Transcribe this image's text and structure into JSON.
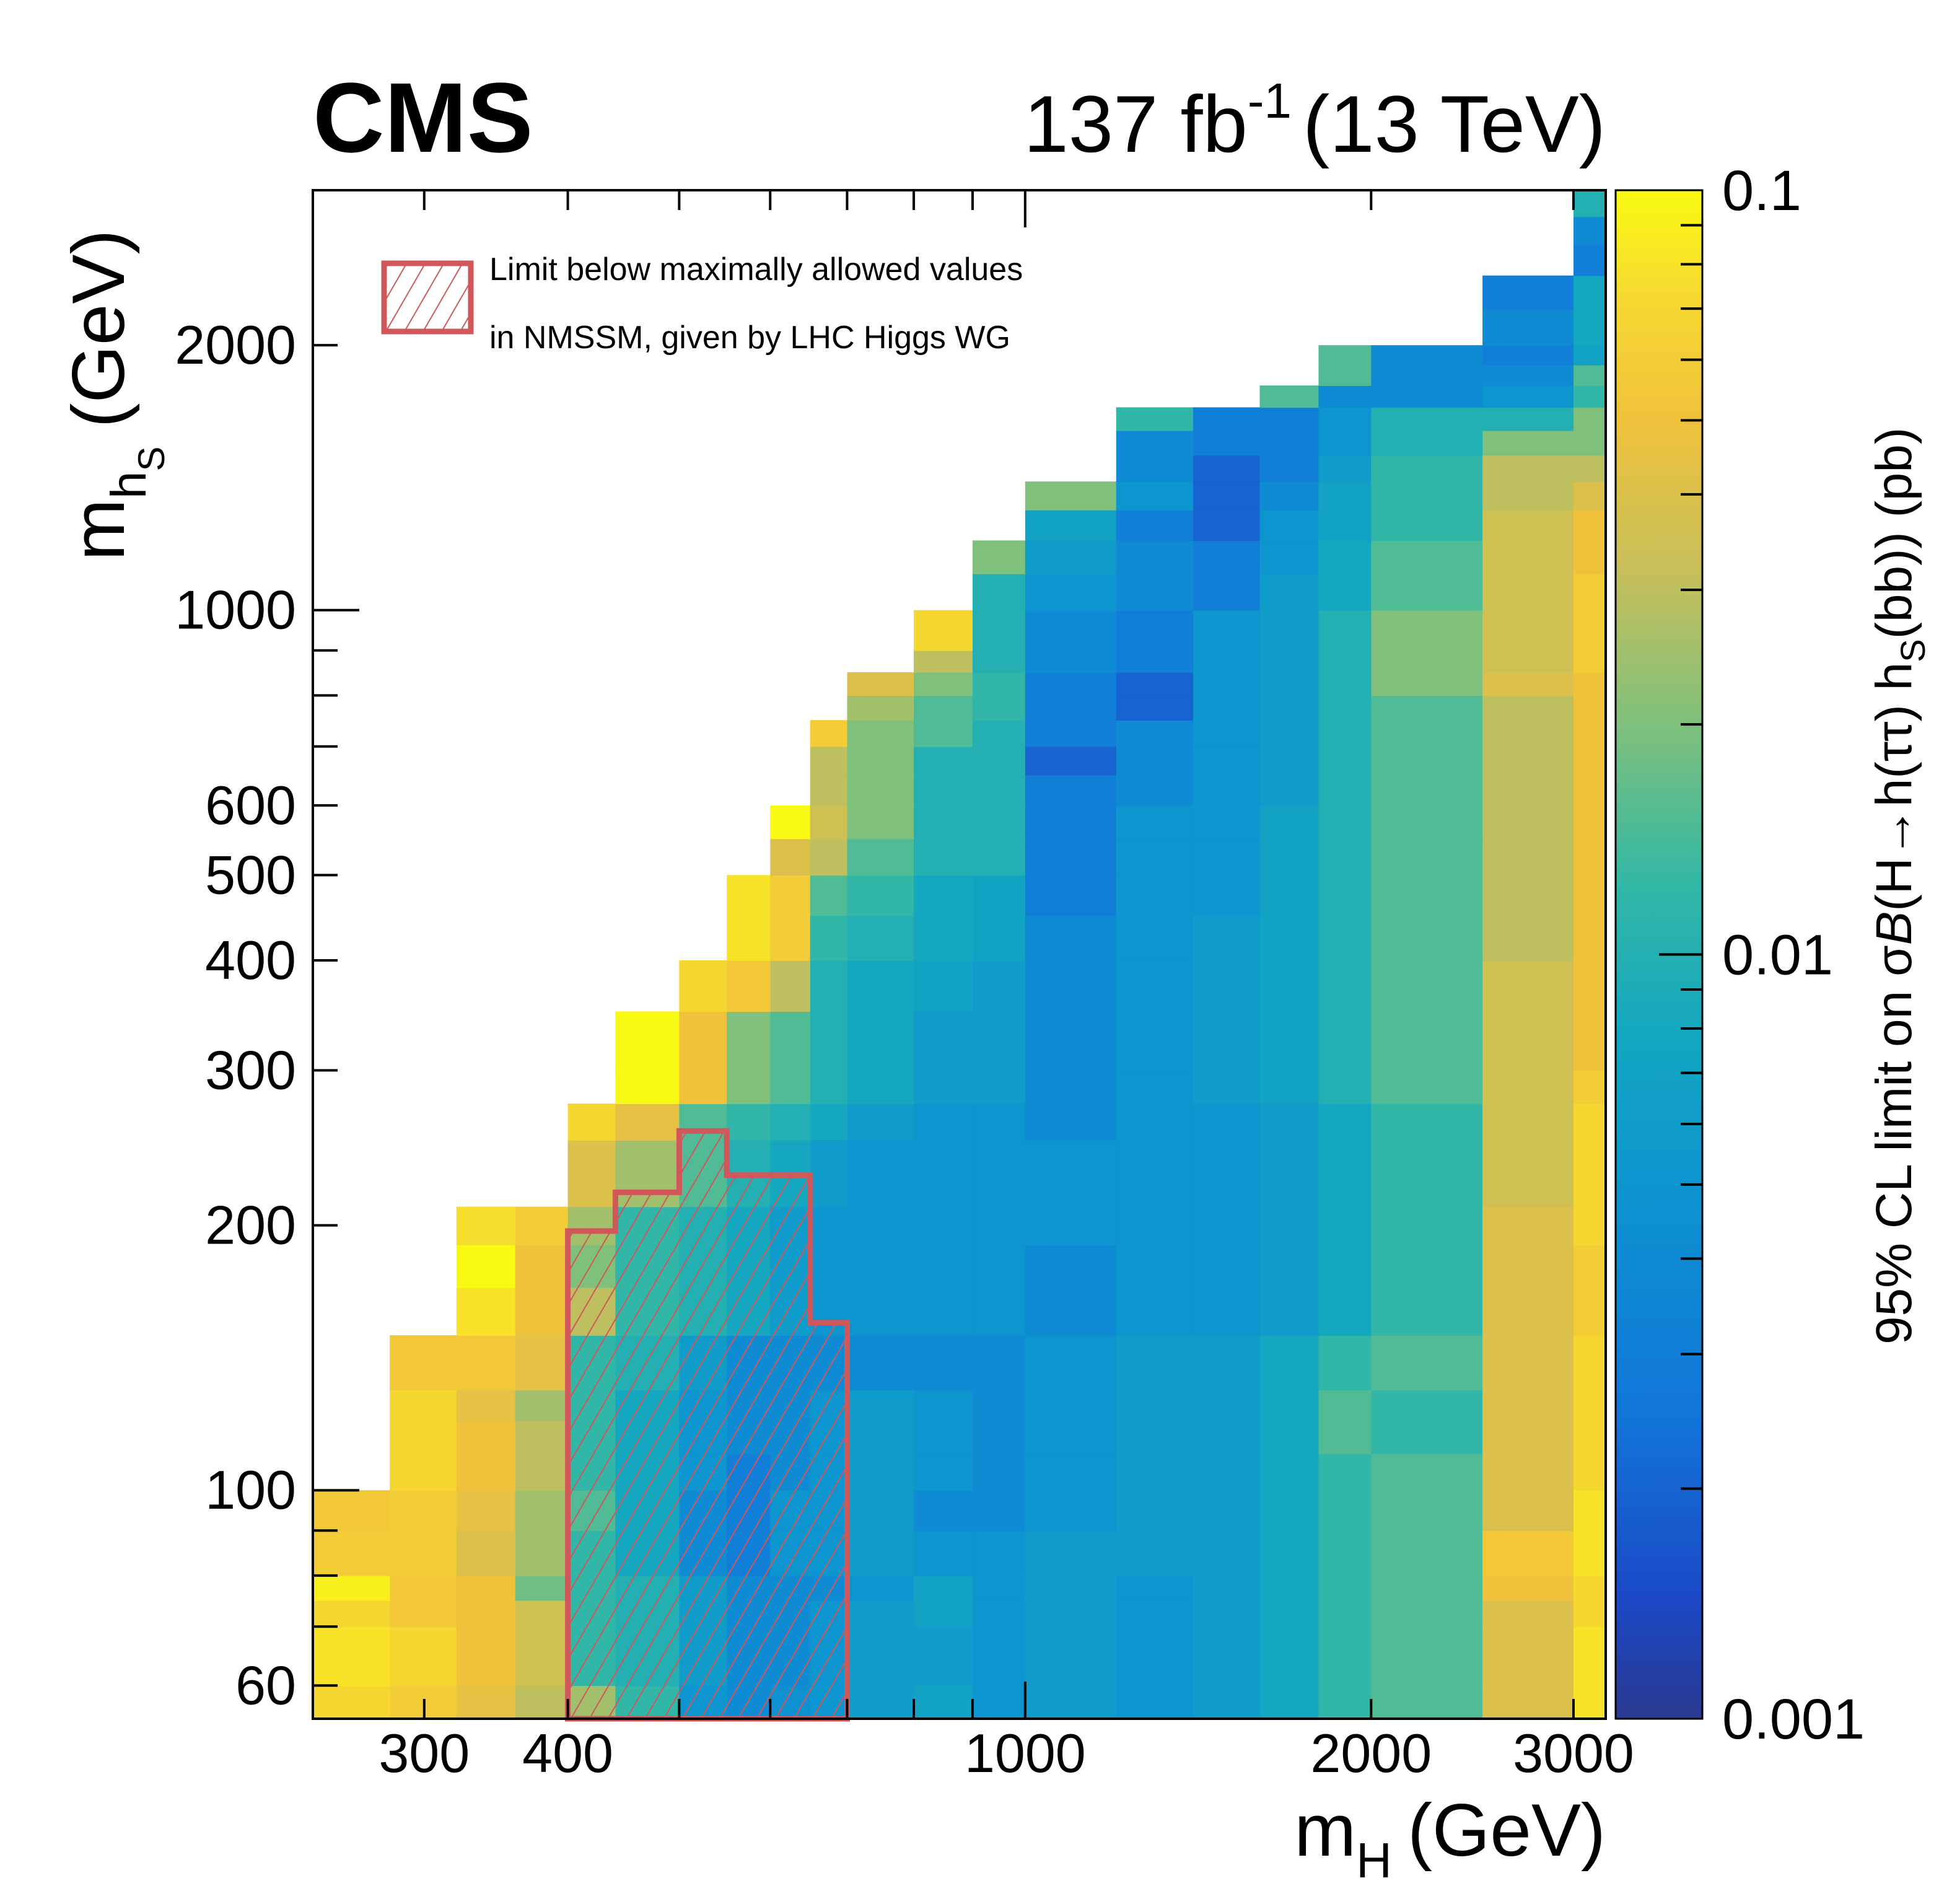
{
  "header": {
    "experiment": "CMS",
    "lumi_value": "137 fb",
    "lumi_exp": "-1",
    "energy": "(13 TeV)"
  },
  "legend": {
    "line1": "Limit below maximally allowed values",
    "line2": "in NMSSM, given by LHC Higgs WG"
  },
  "axes": {
    "x_main": "m",
    "x_sub": "H",
    "x_unit": "(GeV)",
    "y_main": "m",
    "y_sub": "h",
    "y_subsub": "S",
    "y_unit": "(GeV)",
    "z_label": "95% CL limit on σ",
    "z_italic": "B",
    "z_mid": "(H→h(ττ) h",
    "z_sub": "S",
    "z_end": "(bb))  (pb)"
  },
  "chart_data": {
    "type": "heatmap",
    "x_axis": {
      "label": "m_H (GeV)",
      "scale": "log",
      "range": [
        240,
        3200
      ],
      "tick_labels": [
        "300",
        "400",
        "1000",
        "2000",
        "3000"
      ]
    },
    "y_axis": {
      "label": "m_hS (GeV)",
      "scale": "log",
      "range": [
        55,
        3000
      ],
      "tick_labels": [
        "60",
        "100",
        "200",
        "300",
        "400",
        "500",
        "600",
        "1000",
        "2000"
      ]
    },
    "z_axis": {
      "label": "95% CL limit on σB(H→h(ττ) h_S(bb)) (pb)",
      "scale": "log",
      "range": [
        0.001,
        0.1
      ],
      "tick_labels": [
        "0.001",
        "0.01",
        "0.1"
      ],
      "palette": "parula-like (dark blue → teal → green → yellow)"
    },
    "x_bin_edges": [
      240,
      280,
      320,
      360,
      400,
      440,
      500,
      550,
      600,
      650,
      700,
      800,
      900,
      1000,
      1200,
      1400,
      1600,
      1800,
      2000,
      2500,
      3000,
      3200
    ],
    "y_bin_edges": [
      55,
      60,
      70,
      75,
      80,
      90,
      100,
      110,
      120,
      130,
      150,
      170,
      190,
      210,
      250,
      275,
      300,
      350,
      400,
      450,
      500,
      550,
      600,
      650,
      700,
      750,
      800,
      850,
      900,
      1000,
      1100,
      1200,
      1300,
      1400,
      1500,
      1600,
      1700,
      1800,
      1900,
      2000,
      2200,
      2400,
      2600,
      2800,
      3000
    ],
    "cells": [
      [
        0.07,
        0.06,
        0.045,
        0.03,
        0.025,
        0.012,
        0.005,
        0.004,
        0.0045,
        0.005,
        0.006,
        0.007,
        0.005,
        0.006,
        0.005,
        0.006,
        0.008,
        0.012,
        0.015,
        0.04,
        0.08
      ],
      [
        0.08,
        0.07,
        0.05,
        0.035,
        0.012,
        0.01,
        0.006,
        0.004,
        0.004,
        0.005,
        0.006,
        0.006,
        0.005,
        0.006,
        0.005,
        0.006,
        0.008,
        0.012,
        0.015,
        0.04,
        0.08
      ],
      [
        0.07,
        0.055,
        0.05,
        0.035,
        0.012,
        0.01,
        0.006,
        0.004,
        0.004,
        0.005,
        0.006,
        0.007,
        0.005,
        0.006,
        0.005,
        0.006,
        0.008,
        0.012,
        0.015,
        0.04,
        0.07
      ],
      [
        0.09,
        0.055,
        0.05,
        0.018,
        0.012,
        0.01,
        0.006,
        0.004,
        0.004,
        0.004,
        0.005,
        0.007,
        0.005,
        0.006,
        0.005,
        0.006,
        0.008,
        0.012,
        0.015,
        0.05,
        0.07
      ],
      [
        0.06,
        0.06,
        0.04,
        0.025,
        0.012,
        0.008,
        0.004,
        0.003,
        0.005,
        0.005,
        0.006,
        0.005,
        0.005,
        0.006,
        0.006,
        0.006,
        0.008,
        0.012,
        0.015,
        0.055,
        0.08
      ],
      [
        0.055,
        0.06,
        0.045,
        0.025,
        0.015,
        0.008,
        0.004,
        0.003,
        0.005,
        0.005,
        0.006,
        0.004,
        0.004,
        0.005,
        0.006,
        0.006,
        0.008,
        0.012,
        0.015,
        0.04,
        0.08
      ],
      [
        null,
        0.07,
        0.05,
        0.03,
        0.012,
        0.008,
        0.005,
        0.003,
        0.004,
        0.005,
        0.006,
        0.005,
        0.004,
        0.005,
        0.006,
        0.006,
        0.008,
        0.012,
        0.015,
        0.04,
        0.07
      ],
      [
        null,
        0.07,
        0.05,
        0.03,
        0.012,
        0.008,
        0.005,
        0.004,
        0.004,
        0.005,
        0.006,
        0.005,
        0.004,
        0.005,
        0.006,
        0.006,
        0.008,
        0.015,
        0.012,
        0.04,
        0.07
      ],
      [
        null,
        0.07,
        0.045,
        0.025,
        0.012,
        0.008,
        0.005,
        0.004,
        0.004,
        0.005,
        0.006,
        0.005,
        0.004,
        0.005,
        0.006,
        0.006,
        0.008,
        0.015,
        0.012,
        0.04,
        0.07
      ],
      [
        null,
        0.055,
        0.055,
        0.045,
        0.012,
        0.01,
        0.006,
        0.004,
        0.004,
        0.004,
        0.004,
        0.004,
        0.004,
        0.005,
        0.006,
        0.006,
        0.008,
        0.012,
        0.015,
        0.04,
        0.07
      ],
      [
        null,
        null,
        0.08,
        0.05,
        0.03,
        0.012,
        0.01,
        0.008,
        0.006,
        0.005,
        0.005,
        0.005,
        0.005,
        0.004,
        0.005,
        0.005,
        0.006,
        0.008,
        0.012,
        0.04,
        0.06
      ],
      [
        null,
        null,
        0.1,
        0.05,
        0.02,
        0.012,
        0.01,
        0.008,
        0.006,
        0.005,
        0.005,
        0.005,
        0.005,
        0.004,
        0.005,
        0.005,
        0.006,
        0.008,
        0.012,
        0.04,
        0.06
      ],
      [
        null,
        null,
        0.075,
        0.06,
        0.025,
        0.012,
        0.01,
        0.008,
        0.006,
        0.005,
        0.005,
        0.005,
        0.005,
        0.005,
        0.005,
        0.005,
        0.006,
        0.008,
        0.012,
        0.04,
        0.07
      ],
      [
        null,
        null,
        null,
        null,
        0.04,
        0.025,
        0.015,
        0.01,
        0.008,
        0.006,
        0.005,
        0.005,
        0.005,
        0.005,
        0.005,
        0.005,
        0.006,
        0.008,
        0.012,
        0.035,
        0.07
      ],
      [
        null,
        null,
        null,
        null,
        0.07,
        0.045,
        0.015,
        0.012,
        0.01,
        0.008,
        0.006,
        0.005,
        0.005,
        0.004,
        0.005,
        0.005,
        0.006,
        0.008,
        0.012,
        0.035,
        0.07
      ],
      [
        null,
        null,
        null,
        null,
        null,
        0.1,
        0.05,
        0.02,
        0.015,
        0.01,
        0.008,
        0.006,
        0.006,
        0.004,
        0.005,
        0.006,
        0.007,
        0.01,
        0.015,
        0.035,
        0.06
      ],
      [
        null,
        null,
        null,
        null,
        null,
        0.1,
        0.05,
        0.02,
        0.015,
        0.01,
        0.008,
        0.006,
        0.006,
        0.004,
        0.005,
        0.006,
        0.007,
        0.01,
        0.015,
        0.035,
        0.05
      ],
      [
        null,
        null,
        null,
        null,
        null,
        null,
        0.07,
        0.055,
        0.03,
        0.01,
        0.008,
        0.007,
        0.006,
        0.004,
        0.005,
        0.006,
        0.007,
        0.01,
        0.015,
        0.035,
        0.05
      ],
      [
        null,
        null,
        null,
        null,
        null,
        null,
        null,
        0.08,
        0.06,
        0.012,
        0.01,
        0.008,
        0.007,
        0.004,
        0.005,
        0.006,
        0.007,
        0.01,
        0.015,
        0.03,
        0.05
      ],
      [
        null,
        null,
        null,
        null,
        null,
        null,
        null,
        0.08,
        0.06,
        0.015,
        0.012,
        0.008,
        0.007,
        0.003,
        0.005,
        0.005,
        0.007,
        0.01,
        0.015,
        0.03,
        0.05
      ],
      [
        null,
        null,
        null,
        null,
        null,
        null,
        null,
        null,
        0.04,
        0.03,
        0.015,
        0.01,
        0.01,
        0.003,
        0.005,
        0.005,
        0.007,
        0.01,
        0.015,
        0.03,
        0.05
      ],
      [
        null,
        null,
        null,
        null,
        null,
        null,
        null,
        null,
        0.1,
        0.035,
        0.02,
        0.01,
        0.01,
        0.003,
        0.005,
        0.005,
        0.007,
        0.01,
        0.015,
        0.03,
        0.05
      ],
      [
        null,
        null,
        null,
        null,
        null,
        null,
        null,
        null,
        null,
        0.03,
        0.02,
        0.01,
        0.01,
        0.003,
        0.004,
        0.005,
        0.006,
        0.01,
        0.015,
        0.03,
        0.05
      ],
      [
        null,
        null,
        null,
        null,
        null,
        null,
        null,
        null,
        null,
        0.03,
        0.02,
        0.01,
        0.01,
        0.002,
        0.004,
        0.005,
        0.006,
        0.01,
        0.015,
        0.03,
        0.05
      ],
      [
        null,
        null,
        null,
        null,
        null,
        null,
        null,
        null,
        null,
        0.06,
        0.02,
        0.015,
        0.01,
        0.003,
        0.004,
        0.005,
        0.006,
        0.01,
        0.015,
        0.03,
        0.05
      ],
      [
        null,
        null,
        null,
        null,
        null,
        null,
        null,
        null,
        null,
        null,
        0.025,
        0.015,
        0.012,
        0.003,
        0.002,
        0.005,
        0.006,
        0.01,
        0.015,
        0.03,
        0.05
      ],
      [
        null,
        null,
        null,
        null,
        null,
        null,
        null,
        null,
        null,
        null,
        0.04,
        0.02,
        0.012,
        0.003,
        0.002,
        0.005,
        0.006,
        0.01,
        0.02,
        0.04,
        0.05
      ],
      [
        null,
        null,
        null,
        null,
        null,
        null,
        null,
        null,
        null,
        null,
        null,
        0.03,
        0.01,
        0.004,
        0.003,
        0.005,
        0.006,
        0.01,
        0.02,
        0.035,
        0.06
      ],
      [
        null,
        null,
        null,
        null,
        null,
        null,
        null,
        null,
        null,
        null,
        null,
        0.07,
        0.01,
        0.004,
        0.003,
        0.005,
        0.006,
        0.01,
        0.02,
        0.035,
        0.06
      ],
      [
        null,
        null,
        null,
        null,
        null,
        null,
        null,
        null,
        null,
        null,
        null,
        null,
        0.01,
        0.005,
        0.004,
        0.003,
        0.006,
        0.008,
        0.015,
        0.035,
        0.06
      ],
      [
        null,
        null,
        null,
        null,
        null,
        null,
        null,
        null,
        null,
        null,
        null,
        null,
        0.02,
        0.006,
        0.004,
        0.003,
        0.005,
        0.008,
        0.015,
        0.035,
        0.05
      ],
      [
        null,
        null,
        null,
        null,
        null,
        null,
        null,
        null,
        null,
        null,
        null,
        null,
        null,
        0.007,
        0.003,
        0.002,
        0.005,
        0.007,
        0.012,
        0.035,
        0.05
      ],
      [
        null,
        null,
        null,
        null,
        null,
        null,
        null,
        null,
        null,
        null,
        null,
        null,
        null,
        0.02,
        0.005,
        0.002,
        0.004,
        0.007,
        0.012,
        0.03,
        0.04
      ],
      [
        null,
        null,
        null,
        null,
        null,
        null,
        null,
        null,
        null,
        null,
        null,
        null,
        null,
        null,
        0.004,
        0.002,
        0.003,
        0.006,
        0.012,
        0.03,
        0.03
      ],
      [
        null,
        null,
        null,
        null,
        null,
        null,
        null,
        null,
        null,
        null,
        null,
        null,
        null,
        null,
        0.004,
        0.003,
        0.003,
        0.005,
        0.01,
        0.02,
        0.02
      ],
      [
        null,
        null,
        null,
        null,
        null,
        null,
        null,
        null,
        null,
        null,
        null,
        null,
        null,
        null,
        0.012,
        0.003,
        0.003,
        0.005,
        0.01,
        0.01,
        0.02
      ],
      [
        null,
        null,
        null,
        null,
        null,
        null,
        null,
        null,
        null,
        null,
        null,
        null,
        null,
        null,
        null,
        null,
        0.015,
        0.004,
        0.004,
        0.005,
        0.012
      ],
      [
        null,
        null,
        null,
        null,
        null,
        null,
        null,
        null,
        null,
        null,
        null,
        null,
        null,
        null,
        null,
        null,
        null,
        0.015,
        0.004,
        0.004,
        0.015
      ],
      [
        null,
        null,
        null,
        null,
        null,
        null,
        null,
        null,
        null,
        null,
        null,
        null,
        null,
        null,
        null,
        null,
        null,
        0.015,
        0.004,
        0.003,
        0.007
      ],
      [
        null,
        null,
        null,
        null,
        null,
        null,
        null,
        null,
        null,
        null,
        null,
        null,
        null,
        null,
        null,
        null,
        null,
        null,
        null,
        0.004,
        0.008
      ],
      [
        null,
        null,
        null,
        null,
        null,
        null,
        null,
        null,
        null,
        null,
        null,
        null,
        null,
        null,
        null,
        null,
        null,
        null,
        null,
        0.003,
        0.008
      ],
      [
        null,
        null,
        null,
        null,
        null,
        null,
        null,
        null,
        null,
        null,
        null,
        null,
        null,
        null,
        null,
        null,
        null,
        null,
        null,
        null,
        0.003
      ],
      [
        null,
        null,
        null,
        null,
        null,
        null,
        null,
        null,
        null,
        null,
        null,
        null,
        null,
        null,
        null,
        null,
        null,
        null,
        null,
        null,
        0.004
      ],
      [
        null,
        null,
        null,
        null,
        null,
        null,
        null,
        null,
        null,
        null,
        null,
        null,
        null,
        null,
        null,
        null,
        null,
        null,
        null,
        null,
        0.01
      ]
    ],
    "nmssm_region_outline": [
      [
        400,
        55
      ],
      [
        400,
        197
      ],
      [
        440,
        197
      ],
      [
        440,
        218
      ],
      [
        500,
        218
      ],
      [
        500,
        256
      ],
      [
        550,
        256
      ],
      [
        550,
        228
      ],
      [
        650,
        228
      ],
      [
        650,
        155
      ],
      [
        700,
        155
      ],
      [
        700,
        55
      ]
    ],
    "legend": "top-left",
    "grid": false
  }
}
